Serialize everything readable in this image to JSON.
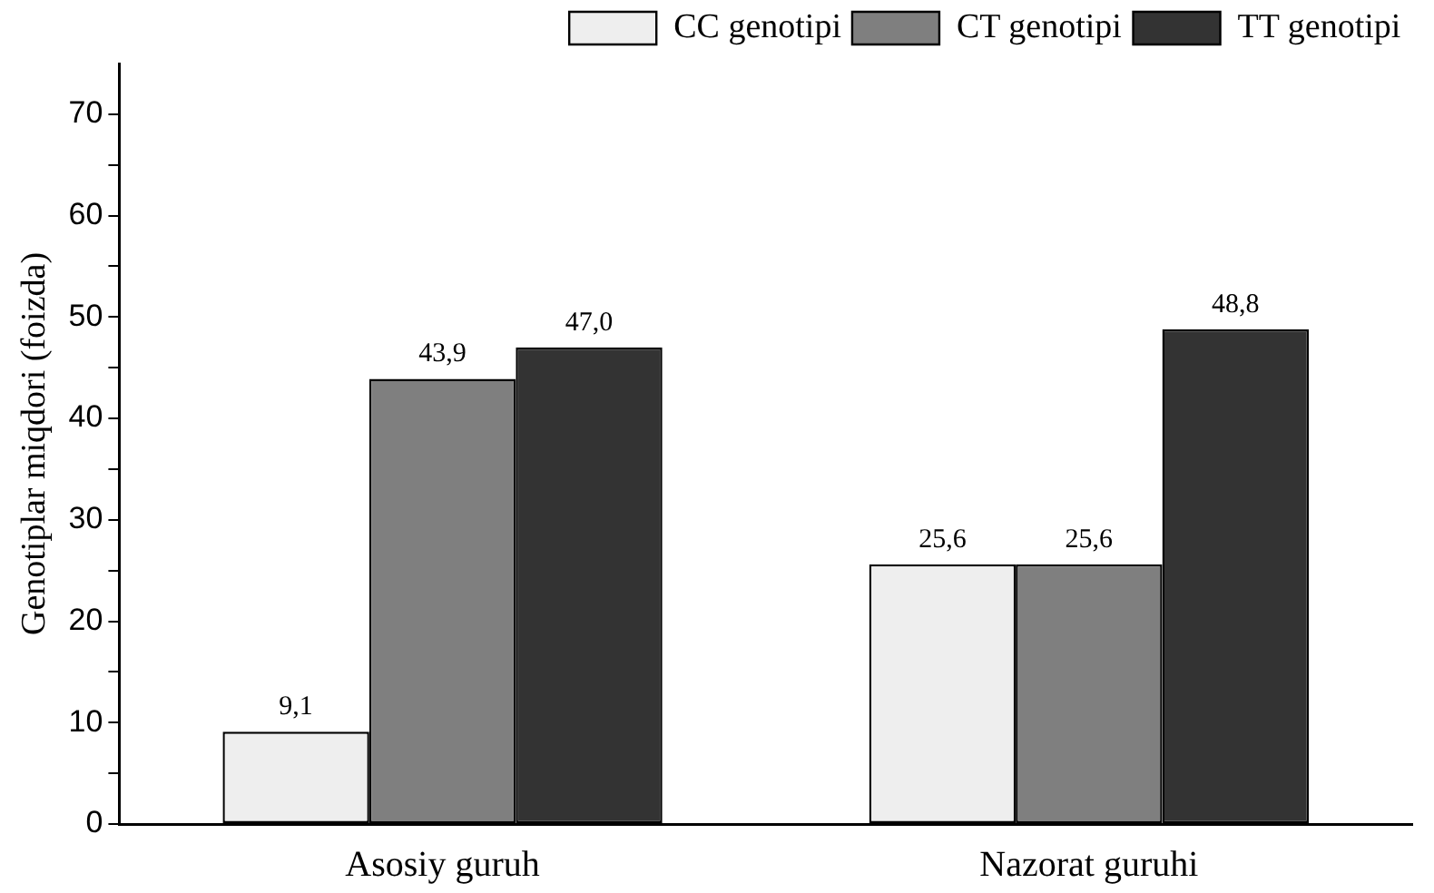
{
  "chart_data": {
    "type": "bar",
    "ylabel": "Genotiplar miqdori (foizda)",
    "categories": [
      "Asosiy guruh",
      "Nazorat guruhi"
    ],
    "series": [
      {
        "name": "CC genotipi",
        "color": "#eeeeee",
        "values": [
          9.1,
          25.6
        ],
        "value_labels": [
          "9,1",
          "25,6"
        ]
      },
      {
        "name": "CT genotipi",
        "color": "#7f7f7f",
        "values": [
          43.9,
          25.6
        ],
        "value_labels": [
          "43,9",
          "25,6"
        ]
      },
      {
        "name": "TT genotipi",
        "color": "#333333",
        "values": [
          47.0,
          48.8
        ],
        "value_labels": [
          "47,0",
          "48,8"
        ]
      }
    ],
    "ylim": [
      0,
      75
    ],
    "yticks": [
      0,
      {
        "value": 5,
        "label": null
      },
      10,
      {
        "value": 15,
        "label": null
      },
      20,
      {
        "value": 25,
        "label": null
      },
      30,
      {
        "value": 35,
        "label": null
      },
      40,
      {
        "value": 45,
        "label": null
      },
      50,
      {
        "value": 55,
        "label": null
      },
      60,
      {
        "value": 65,
        "label": null
      },
      70
    ],
    "grid": false,
    "legend": "top right"
  }
}
